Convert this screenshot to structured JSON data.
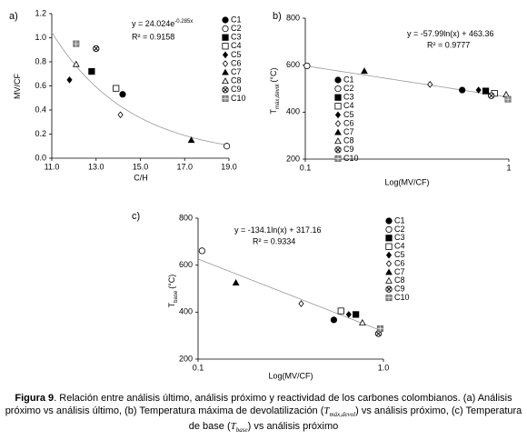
{
  "chart_data": [
    {
      "type": "scatter",
      "label": "a)",
      "xlabel": "C/H",
      "ylabel": "MV/CF",
      "equation": "y = 24.024e",
      "equation_exponent": "-0.285x",
      "r2": "R² = 0.9158",
      "trendline": {
        "kind": "exponential",
        "a": 24.024,
        "b": -0.285
      },
      "xlim": [
        11,
        19
      ],
      "xticks": [
        {
          "value": 11,
          "label": "11.0"
        },
        {
          "value": 13,
          "label": "13.0"
        },
        {
          "value": 15,
          "label": "15.0"
        },
        {
          "value": 17,
          "label": "17.0"
        },
        {
          "value": 19,
          "label": "19.0"
        }
      ],
      "ylim": [
        0,
        1.2
      ],
      "yticks": [
        {
          "value": 0,
          "label": "0.0"
        },
        0.2,
        0.4,
        0.6,
        0.8,
        {
          "value": 1,
          "label": "1.0"
        },
        1.2
      ],
      "series": [
        {
          "name": "C1",
          "marker": "circle-filled",
          "color": "#000",
          "x": [
            14.2
          ],
          "y": [
            0.53
          ]
        },
        {
          "name": "C2",
          "marker": "circle-open",
          "color": "#000",
          "x": [
            18.9
          ],
          "y": [
            0.1
          ]
        },
        {
          "name": "C3",
          "marker": "square-filled",
          "color": "#000",
          "x": [
            12.8
          ],
          "y": [
            0.72
          ]
        },
        {
          "name": "C4",
          "marker": "square-open",
          "color": "#000",
          "x": [
            13.9
          ],
          "y": [
            0.58
          ]
        },
        {
          "name": "C5",
          "marker": "diamond-filled",
          "color": "#000",
          "x": [
            11.8
          ],
          "y": [
            0.65
          ]
        },
        {
          "name": "C6",
          "marker": "diamond-open",
          "color": "#000",
          "x": [
            14.1
          ],
          "y": [
            0.36
          ]
        },
        {
          "name": "C7",
          "marker": "triangle-filled",
          "color": "#000",
          "x": [
            17.3
          ],
          "y": [
            0.15
          ]
        },
        {
          "name": "C8",
          "marker": "triangle-open",
          "color": "#000",
          "x": [
            12.1
          ],
          "y": [
            0.78
          ]
        },
        {
          "name": "C9",
          "marker": "circle-x",
          "color": "#000",
          "x": [
            13.0
          ],
          "y": [
            0.91
          ]
        },
        {
          "name": "C10",
          "marker": "square-star",
          "color": "#000",
          "x": [
            12.1
          ],
          "y": [
            0.95
          ]
        }
      ]
    },
    {
      "type": "scatter",
      "label": "b)",
      "xlabel": "Log(MV/CF)",
      "ylabel": "T",
      "ylabel_sub": "máx,devol",
      "ylabel_unit": "(°C)",
      "equation": "y = -57.99ln(x) + 463.36",
      "r2": "R² = 0.9777",
      "trendline": {
        "kind": "logarithmic",
        "a": -57.99,
        "b": 463.36
      },
      "xlog": true,
      "xlim": [
        0.1,
        1
      ],
      "xticks": [
        0.1,
        1
      ],
      "ylim": [
        200,
        800
      ],
      "yticks": [
        200,
        400,
        600,
        800
      ],
      "series": [
        {
          "name": "C1",
          "marker": "circle-filled",
          "color": "#000",
          "x": [
            0.59
          ],
          "y": [
            494
          ]
        },
        {
          "name": "C2",
          "marker": "circle-open",
          "color": "#000",
          "x": [
            0.102
          ],
          "y": [
            597
          ]
        },
        {
          "name": "C3",
          "marker": "square-filled",
          "color": "#000",
          "x": [
            0.77
          ],
          "y": [
            490
          ]
        },
        {
          "name": "C4",
          "marker": "square-open",
          "color": "#000",
          "x": [
            0.85
          ],
          "y": [
            480
          ]
        },
        {
          "name": "C5",
          "marker": "diamond-filled",
          "color": "#000",
          "x": [
            0.71
          ],
          "y": [
            494
          ]
        },
        {
          "name": "C6",
          "marker": "diamond-open",
          "color": "#000",
          "x": [
            0.41
          ],
          "y": [
            518
          ]
        },
        {
          "name": "C7",
          "marker": "triangle-filled",
          "color": "#000",
          "x": [
            0.195
          ],
          "y": [
            575
          ]
        },
        {
          "name": "C8",
          "marker": "triangle-open",
          "color": "#000",
          "x": [
            0.97
          ],
          "y": [
            475
          ]
        },
        {
          "name": "C9",
          "marker": "circle-x",
          "color": "#000",
          "x": [
            0.82
          ],
          "y": [
            470
          ]
        },
        {
          "name": "C10",
          "marker": "square-star",
          "color": "#000",
          "x": [
            0.99
          ],
          "y": [
            455
          ]
        }
      ]
    },
    {
      "type": "scatter",
      "label": "c)",
      "xlabel": "Log(MV/CF)",
      "ylabel": "T",
      "ylabel_sub": "base",
      "ylabel_unit": "(°C)",
      "equation": "y = -134.1ln(x) + 317.16",
      "r2": "R² = 0.9334",
      "trendline": {
        "kind": "logarithmic",
        "a": -134.1,
        "b": 317.16
      },
      "xlog": true,
      "xlim": [
        0.1,
        1
      ],
      "xticks": [
        0.1,
        {
          "value": 1,
          "label": "1.0"
        }
      ],
      "ylim": [
        200,
        800
      ],
      "yticks": [
        200,
        400,
        600,
        800
      ],
      "series": [
        {
          "name": "C1",
          "marker": "circle-filled",
          "color": "#000",
          "x": [
            0.54
          ],
          "y": [
            367
          ]
        },
        {
          "name": "C2",
          "marker": "circle-open",
          "color": "#000",
          "x": [
            0.105
          ],
          "y": [
            661
          ]
        },
        {
          "name": "C3",
          "marker": "square-filled",
          "color": "#000",
          "x": [
            0.71
          ],
          "y": [
            390
          ]
        },
        {
          "name": "C4",
          "marker": "square-open",
          "color": "#000",
          "x": [
            0.59
          ],
          "y": [
            405
          ]
        },
        {
          "name": "C5",
          "marker": "diamond-filled",
          "color": "#000",
          "x": [
            0.65
          ],
          "y": [
            390
          ]
        },
        {
          "name": "C6",
          "marker": "diamond-open",
          "color": "#000",
          "x": [
            0.36
          ],
          "y": [
            436
          ]
        },
        {
          "name": "C7",
          "marker": "triangle-filled",
          "color": "#000",
          "x": [
            0.16
          ],
          "y": [
            525
          ]
        },
        {
          "name": "C8",
          "marker": "triangle-open",
          "color": "#000",
          "x": [
            0.77
          ],
          "y": [
            355
          ]
        },
        {
          "name": "C9",
          "marker": "circle-x",
          "color": "#000",
          "x": [
            0.94
          ],
          "y": [
            308
          ]
        },
        {
          "name": "C10",
          "marker": "square-star",
          "color": "#000",
          "x": [
            0.96
          ],
          "y": [
            330
          ]
        }
      ]
    }
  ],
  "caption": {
    "label": "Figura 9",
    "text1": ". Relación entre análisis último, análisis próximo y reactividad de los carbones colombianos. (a) Análisis próximo vs análisis último, (b) Temperatura máxima de devolatilización (",
    "sym1": "T",
    "sub1": "máx,devol",
    "text2": ") vs análisis próximo, (c) Temperatura de base (",
    "sym2": "T",
    "sub2": "base",
    "text3": ") vs análisis próximo"
  }
}
